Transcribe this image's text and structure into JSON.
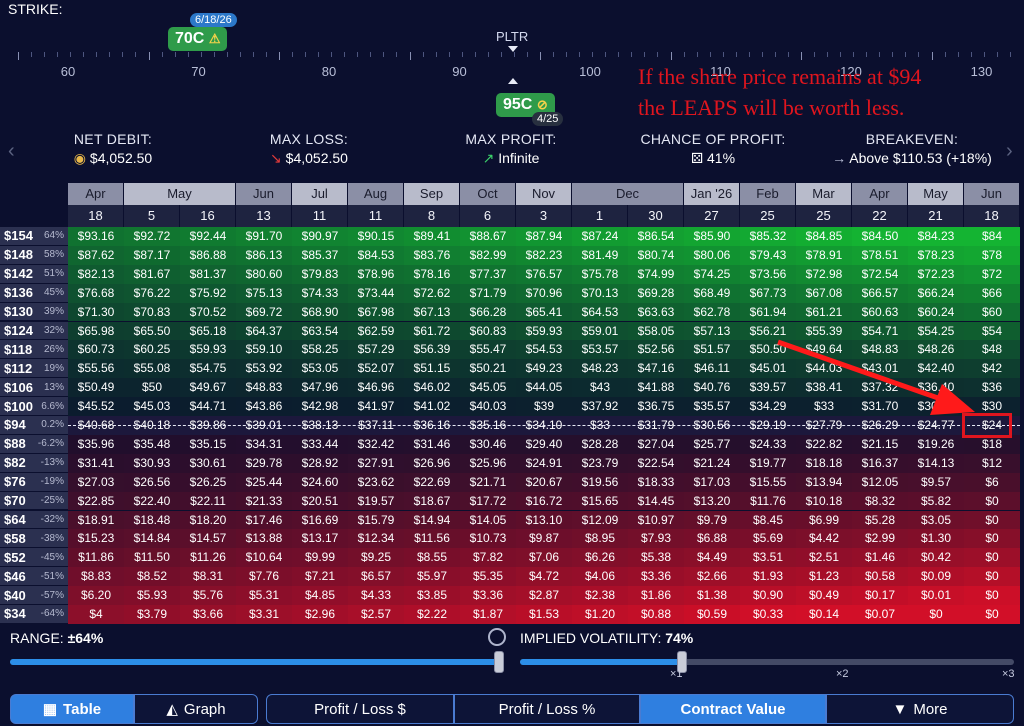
{
  "strike_label": "STRIKE:",
  "ticker": "PLTR",
  "ruler_labels": [
    "60",
    "70",
    "80",
    "90",
    "100",
    "110",
    "120",
    "130"
  ],
  "legs": {
    "long": {
      "label": "70C",
      "date": "6/18/26",
      "icon": "warning-icon"
    },
    "short": {
      "label": "95C",
      "date": "4/25",
      "icon": "eye-off-icon"
    }
  },
  "annotation": {
    "line1": "If the share price remains at $94",
    "line2": "the LEAPS will be worth less."
  },
  "stats": {
    "net_debit": {
      "label": "NET DEBIT:",
      "value": "$4,052.50",
      "icon": "coins-icon"
    },
    "max_loss": {
      "label": "MAX LOSS:",
      "value": "$4,052.50",
      "icon": "arrow-down-right-icon"
    },
    "max_profit": {
      "label": "MAX PROFIT:",
      "value": "Infinite",
      "icon": "arrow-up-right-icon"
    },
    "chance": {
      "label": "CHANCE OF PROFIT:",
      "value": "41%",
      "icon": "dice-icon"
    },
    "breakeven": {
      "label": "BREAKEVEN:",
      "value": "Above $110.53 (+18%)",
      "icon": "arrow-right-icon"
    }
  },
  "months": [
    {
      "label": "Apr",
      "cols": 1
    },
    {
      "label": "May",
      "cols": 2
    },
    {
      "label": "Jun",
      "cols": 1
    },
    {
      "label": "Jul",
      "cols": 1
    },
    {
      "label": "Aug",
      "cols": 1
    },
    {
      "label": "Sep",
      "cols": 1
    },
    {
      "label": "Oct",
      "cols": 1
    },
    {
      "label": "Nov",
      "cols": 1
    },
    {
      "label": "Dec",
      "cols": 2
    },
    {
      "label": "Jan '26",
      "cols": 1
    },
    {
      "label": "Feb",
      "cols": 1
    },
    {
      "label": "Mar",
      "cols": 1
    },
    {
      "label": "Apr",
      "cols": 1
    },
    {
      "label": "May",
      "cols": 1
    },
    {
      "label": "Jun",
      "cols": 1
    }
  ],
  "days": [
    "18",
    "5",
    "16",
    "13",
    "11",
    "11",
    "8",
    "6",
    "3",
    "1",
    "30",
    "27",
    "25",
    "25",
    "22",
    "21",
    "18"
  ],
  "rows": [
    {
      "price": "$154",
      "pct": "64%",
      "v": [
        "$93.16",
        "$92.72",
        "$92.44",
        "$91.70",
        "$90.97",
        "$90.15",
        "$89.41",
        "$88.67",
        "$87.94",
        "$87.24",
        "$86.54",
        "$85.90",
        "$85.32",
        "$84.85",
        "$84.50",
        "$84.23",
        "$84"
      ]
    },
    {
      "price": "$148",
      "pct": "58%",
      "v": [
        "$87.62",
        "$87.17",
        "$86.88",
        "$86.13",
        "$85.37",
        "$84.53",
        "$83.76",
        "$82.99",
        "$82.23",
        "$81.49",
        "$80.74",
        "$80.06",
        "$79.43",
        "$78.91",
        "$78.51",
        "$78.23",
        "$78"
      ]
    },
    {
      "price": "$142",
      "pct": "51%",
      "v": [
        "$82.13",
        "$81.67",
        "$81.37",
        "$80.60",
        "$79.83",
        "$78.96",
        "$78.16",
        "$77.37",
        "$76.57",
        "$75.78",
        "$74.99",
        "$74.25",
        "$73.56",
        "$72.98",
        "$72.54",
        "$72.23",
        "$72"
      ]
    },
    {
      "price": "$136",
      "pct": "45%",
      "v": [
        "$76.68",
        "$76.22",
        "$75.92",
        "$75.13",
        "$74.33",
        "$73.44",
        "$72.62",
        "$71.79",
        "$70.96",
        "$70.13",
        "$69.28",
        "$68.49",
        "$67.73",
        "$67.08",
        "$66.57",
        "$66.24",
        "$66"
      ]
    },
    {
      "price": "$130",
      "pct": "39%",
      "v": [
        "$71.30",
        "$70.83",
        "$70.52",
        "$69.72",
        "$68.90",
        "$67.98",
        "$67.13",
        "$66.28",
        "$65.41",
        "$64.53",
        "$63.63",
        "$62.78",
        "$61.94",
        "$61.21",
        "$60.63",
        "$60.24",
        "$60"
      ]
    },
    {
      "price": "$124",
      "pct": "32%",
      "v": [
        "$65.98",
        "$65.50",
        "$65.18",
        "$64.37",
        "$63.54",
        "$62.59",
        "$61.72",
        "$60.83",
        "$59.93",
        "$59.01",
        "$58.05",
        "$57.13",
        "$56.21",
        "$55.39",
        "$54.71",
        "$54.25",
        "$54"
      ]
    },
    {
      "price": "$118",
      "pct": "26%",
      "v": [
        "$60.73",
        "$60.25",
        "$59.93",
        "$59.10",
        "$58.25",
        "$57.29",
        "$56.39",
        "$55.47",
        "$54.53",
        "$53.57",
        "$52.56",
        "$51.57",
        "$50.50",
        "$49.64",
        "$48.83",
        "$48.26",
        "$48"
      ]
    },
    {
      "price": "$112",
      "pct": "19%",
      "v": [
        "$55.56",
        "$55.08",
        "$54.75",
        "$53.92",
        "$53.05",
        "$52.07",
        "$51.15",
        "$50.21",
        "$49.23",
        "$48.23",
        "$47.16",
        "$46.11",
        "$45.01",
        "$44.03",
        "$43.01",
        "$42.40",
        "$42"
      ]
    },
    {
      "price": "$106",
      "pct": "13%",
      "v": [
        "$50.49",
        "$50",
        "$49.67",
        "$48.83",
        "$47.96",
        "$46.96",
        "$46.02",
        "$45.05",
        "$44.05",
        "$43",
        "$41.88",
        "$40.76",
        "$39.57",
        "$38.41",
        "$37.32",
        "$36.40",
        "$36"
      ]
    },
    {
      "price": "$100",
      "pct": "6.6%",
      "v": [
        "$45.52",
        "$45.03",
        "$44.71",
        "$43.86",
        "$42.98",
        "$41.97",
        "$41.02",
        "$40.03",
        "$39",
        "$37.92",
        "$36.75",
        "$35.57",
        "$34.29",
        "$33",
        "$31.70",
        "$30.60",
        "$30"
      ]
    },
    {
      "price": "$94",
      "pct": "0.2%",
      "v": [
        "$40.68",
        "$40.18",
        "$39.86",
        "$39.01",
        "$38.13",
        "$37.11",
        "$36.16",
        "$35.16",
        "$34.10",
        "$33",
        "$31.79",
        "$30.56",
        "$29.19",
        "$27.79",
        "$26.29",
        "$24.77",
        "$24"
      ]
    },
    {
      "price": "$88",
      "pct": "-6.2%",
      "v": [
        "$35.96",
        "$35.48",
        "$35.15",
        "$34.31",
        "$33.44",
        "$32.42",
        "$31.46",
        "$30.46",
        "$29.40",
        "$28.28",
        "$27.04",
        "$25.77",
        "$24.33",
        "$22.82",
        "$21.15",
        "$19.26",
        "$18"
      ]
    },
    {
      "price": "$82",
      "pct": "-13%",
      "v": [
        "$31.41",
        "$30.93",
        "$30.61",
        "$29.78",
        "$28.92",
        "$27.91",
        "$26.96",
        "$25.96",
        "$24.91",
        "$23.79",
        "$22.54",
        "$21.24",
        "$19.77",
        "$18.18",
        "$16.37",
        "$14.13",
        "$12"
      ]
    },
    {
      "price": "$76",
      "pct": "-19%",
      "v": [
        "$27.03",
        "$26.56",
        "$26.25",
        "$25.44",
        "$24.60",
        "$23.62",
        "$22.69",
        "$21.71",
        "$20.67",
        "$19.56",
        "$18.33",
        "$17.03",
        "$15.55",
        "$13.94",
        "$12.05",
        "$9.57",
        "$6"
      ]
    },
    {
      "price": "$70",
      "pct": "-25%",
      "v": [
        "$22.85",
        "$22.40",
        "$22.11",
        "$21.33",
        "$20.51",
        "$19.57",
        "$18.67",
        "$17.72",
        "$16.72",
        "$15.65",
        "$14.45",
        "$13.20",
        "$11.76",
        "$10.18",
        "$8.32",
        "$5.82",
        "$0"
      ]
    },
    {
      "price": "$64",
      "pct": "-32%",
      "v": [
        "$18.91",
        "$18.48",
        "$18.20",
        "$17.46",
        "$16.69",
        "$15.79",
        "$14.94",
        "$14.05",
        "$13.10",
        "$12.09",
        "$10.97",
        "$9.79",
        "$8.45",
        "$6.99",
        "$5.28",
        "$3.05",
        "$0"
      ]
    },
    {
      "price": "$58",
      "pct": "-38%",
      "v": [
        "$15.23",
        "$14.84",
        "$14.57",
        "$13.88",
        "$13.17",
        "$12.34",
        "$11.56",
        "$10.73",
        "$9.87",
        "$8.95",
        "$7.93",
        "$6.88",
        "$5.69",
        "$4.42",
        "$2.99",
        "$1.30",
        "$0"
      ]
    },
    {
      "price": "$52",
      "pct": "-45%",
      "v": [
        "$11.86",
        "$11.50",
        "$11.26",
        "$10.64",
        "$9.99",
        "$9.25",
        "$8.55",
        "$7.82",
        "$7.06",
        "$6.26",
        "$5.38",
        "$4.49",
        "$3.51",
        "$2.51",
        "$1.46",
        "$0.42",
        "$0"
      ]
    },
    {
      "price": "$46",
      "pct": "-51%",
      "v": [
        "$8.83",
        "$8.52",
        "$8.31",
        "$7.76",
        "$7.21",
        "$6.57",
        "$5.97",
        "$5.35",
        "$4.72",
        "$4.06",
        "$3.36",
        "$2.66",
        "$1.93",
        "$1.23",
        "$0.58",
        "$0.09",
        "$0"
      ]
    },
    {
      "price": "$40",
      "pct": "-57%",
      "v": [
        "$6.20",
        "$5.93",
        "$5.76",
        "$5.31",
        "$4.85",
        "$4.33",
        "$3.85",
        "$3.36",
        "$2.87",
        "$2.38",
        "$1.86",
        "$1.38",
        "$0.90",
        "$0.49",
        "$0.17",
        "$0.01",
        "$0"
      ]
    },
    {
      "price": "$34",
      "pct": "-64%",
      "v": [
        "$4",
        "$3.79",
        "$3.66",
        "$3.31",
        "$2.96",
        "$2.57",
        "$2.22",
        "$1.87",
        "$1.53",
        "$1.20",
        "$0.88",
        "$0.59",
        "$0.33",
        "$0.14",
        "$0.07",
        "$0",
        "$0"
      ]
    }
  ],
  "range": {
    "label": "RANGE:",
    "value": "±64%",
    "fill": 1.0
  },
  "iv": {
    "label": "IMPLIED VOLATILITY:",
    "value": "74%",
    "multipliers": [
      "×1",
      "×2",
      "×3"
    ],
    "fill": 0.33
  },
  "tabs": {
    "table": "Table",
    "graph": "Graph",
    "pl_dollar": "Profit / Loss $",
    "pl_pct": "Profit / Loss %",
    "contract_value": "Contract Value",
    "more": "More"
  },
  "colors": {
    "profit": "#1fa03a",
    "loss": "#c8102e",
    "accent": "#2f7fe0",
    "annotation": "#e0151e"
  }
}
